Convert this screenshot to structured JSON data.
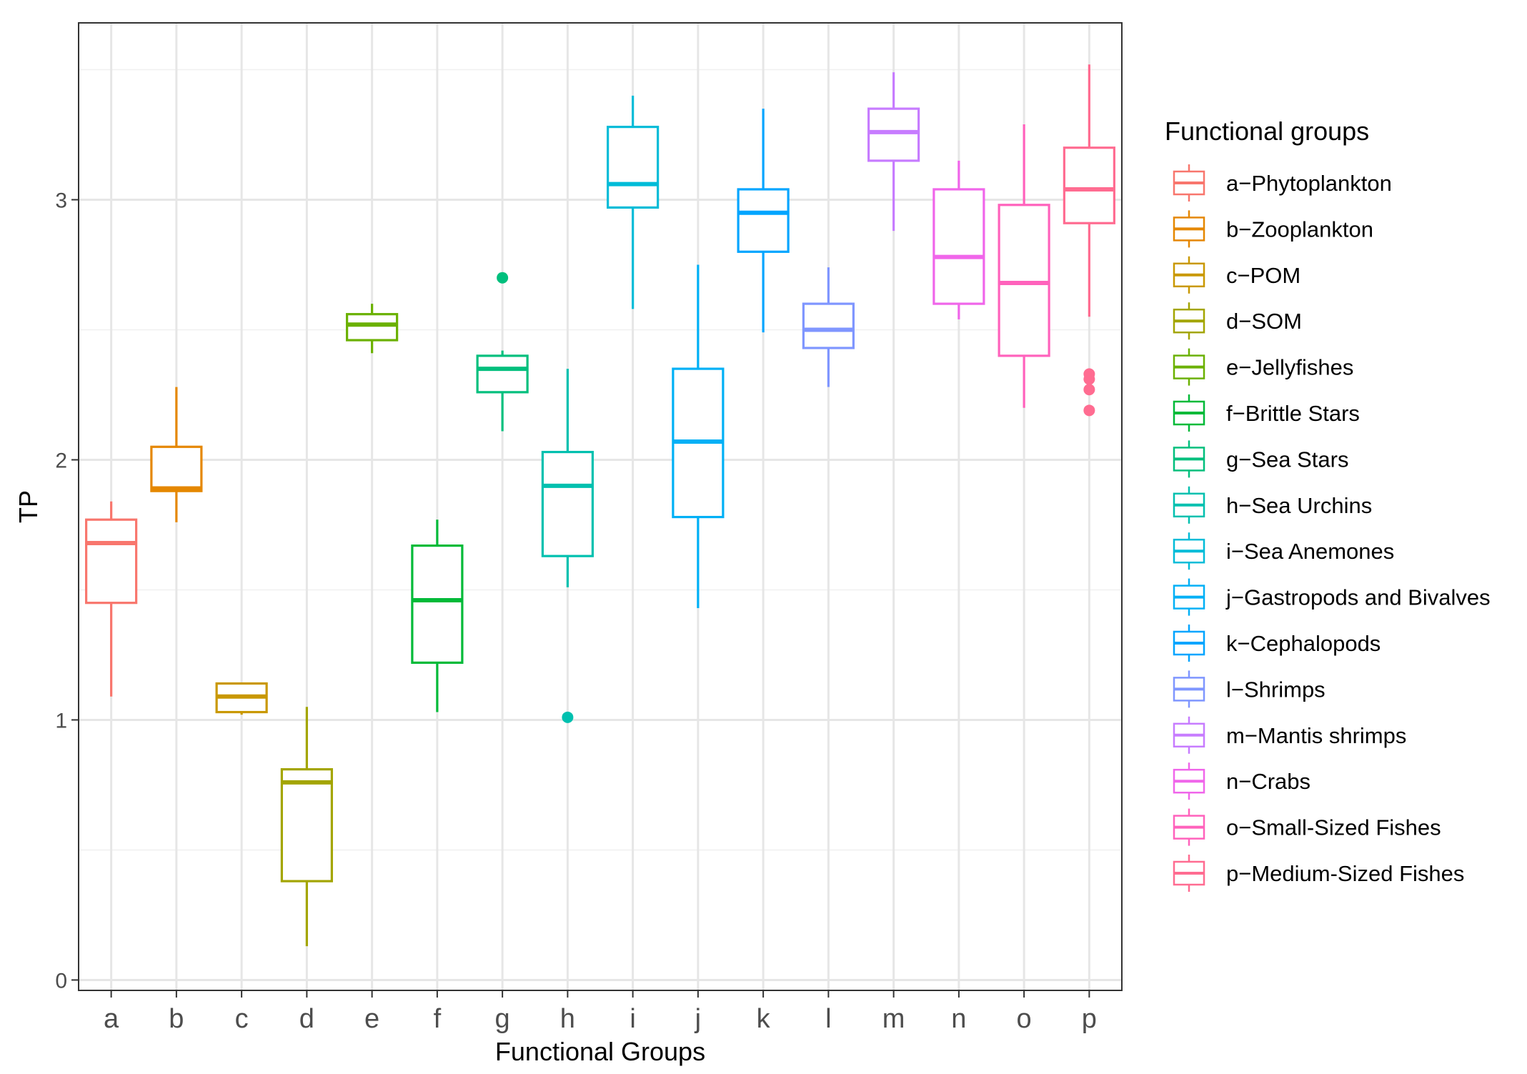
{
  "chart_data": {
    "type": "boxplot",
    "xlabel": "Functional Groups",
    "ylabel": "TP",
    "ylim": [
      -0.04,
      3.68
    ],
    "yticks": [
      0,
      1,
      2,
      3
    ],
    "grid": true,
    "legend": {
      "title": "Functional groups",
      "position": "right"
    },
    "categories": [
      "a",
      "b",
      "c",
      "d",
      "e",
      "f",
      "g",
      "h",
      "i",
      "j",
      "k",
      "l",
      "m",
      "n",
      "o",
      "p"
    ],
    "groups": [
      {
        "key": "a",
        "name": "a−Phytoplankton",
        "color": "#F8766D",
        "whisker_low": 1.09,
        "q1": 1.45,
        "median": 1.68,
        "q3": 1.77,
        "whisker_high": 1.84,
        "outliers": []
      },
      {
        "key": "b",
        "name": "b−Zooplankton",
        "color": "#E58700",
        "whisker_low": 1.76,
        "q1": 1.88,
        "median": 1.89,
        "q3": 2.05,
        "whisker_high": 2.28,
        "outliers": []
      },
      {
        "key": "c",
        "name": "c−POM",
        "color": "#C99800",
        "whisker_low": 1.02,
        "q1": 1.03,
        "median": 1.09,
        "q3": 1.14,
        "whisker_high": 1.14,
        "outliers": []
      },
      {
        "key": "d",
        "name": "d−SOM",
        "color": "#A3A500",
        "whisker_low": 0.13,
        "q1": 0.38,
        "median": 0.76,
        "q3": 0.81,
        "whisker_high": 1.05,
        "outliers": []
      },
      {
        "key": "e",
        "name": "e−Jellyfishes",
        "color": "#6BB100",
        "whisker_low": 2.41,
        "q1": 2.46,
        "median": 2.52,
        "q3": 2.56,
        "whisker_high": 2.6,
        "outliers": []
      },
      {
        "key": "f",
        "name": "f−Brittle Stars",
        "color": "#00BA38",
        "whisker_low": 1.03,
        "q1": 1.22,
        "median": 1.46,
        "q3": 1.67,
        "whisker_high": 1.77,
        "outliers": []
      },
      {
        "key": "g",
        "name": "g−Sea Stars",
        "color": "#00BF7D",
        "whisker_low": 2.11,
        "q1": 2.26,
        "median": 2.35,
        "q3": 2.4,
        "whisker_high": 2.42,
        "outliers": [
          2.7
        ]
      },
      {
        "key": "h",
        "name": "h−Sea Urchins",
        "color": "#00C0AF",
        "whisker_low": 1.51,
        "q1": 1.63,
        "median": 1.9,
        "q3": 2.03,
        "whisker_high": 2.35,
        "outliers": [
          1.01
        ]
      },
      {
        "key": "i",
        "name": "i−Sea Anemones",
        "color": "#00BCD8",
        "whisker_low": 2.58,
        "q1": 2.97,
        "median": 3.06,
        "q3": 3.28,
        "whisker_high": 3.4,
        "outliers": []
      },
      {
        "key": "j",
        "name": "j−Gastropods and Bivalves",
        "color": "#00B0F6",
        "whisker_low": 1.43,
        "q1": 1.78,
        "median": 2.07,
        "q3": 2.35,
        "whisker_high": 2.75,
        "outliers": []
      },
      {
        "key": "k",
        "name": "k−Cephalopods",
        "color": "#00A5FF",
        "whisker_low": 2.49,
        "q1": 2.8,
        "median": 2.95,
        "q3": 3.04,
        "whisker_high": 3.35,
        "outliers": []
      },
      {
        "key": "l",
        "name": "l−Shrimps",
        "color": "#7F96FF",
        "whisker_low": 2.28,
        "q1": 2.43,
        "median": 2.5,
        "q3": 2.6,
        "whisker_high": 2.74,
        "outliers": []
      },
      {
        "key": "m",
        "name": "m−Mantis shrimps",
        "color": "#C77CFF",
        "whisker_low": 2.88,
        "q1": 3.15,
        "median": 3.26,
        "q3": 3.35,
        "whisker_high": 3.49,
        "outliers": []
      },
      {
        "key": "n",
        "name": "n−Crabs",
        "color": "#F066EA",
        "whisker_low": 2.54,
        "q1": 2.6,
        "median": 2.78,
        "q3": 3.04,
        "whisker_high": 3.15,
        "outliers": []
      },
      {
        "key": "o",
        "name": "o−Small-Sized Fishes",
        "color": "#FF62BC",
        "whisker_low": 2.2,
        "q1": 2.4,
        "median": 2.68,
        "q3": 2.98,
        "whisker_high": 3.29,
        "outliers": []
      },
      {
        "key": "p",
        "name": "p−Medium-Sized Fishes",
        "color": "#FF6C91",
        "whisker_low": 2.55,
        "q1": 2.91,
        "median": 3.04,
        "q3": 3.2,
        "whisker_high": 3.52,
        "outliers": [
          2.19,
          2.27,
          2.31,
          2.33
        ]
      }
    ]
  }
}
